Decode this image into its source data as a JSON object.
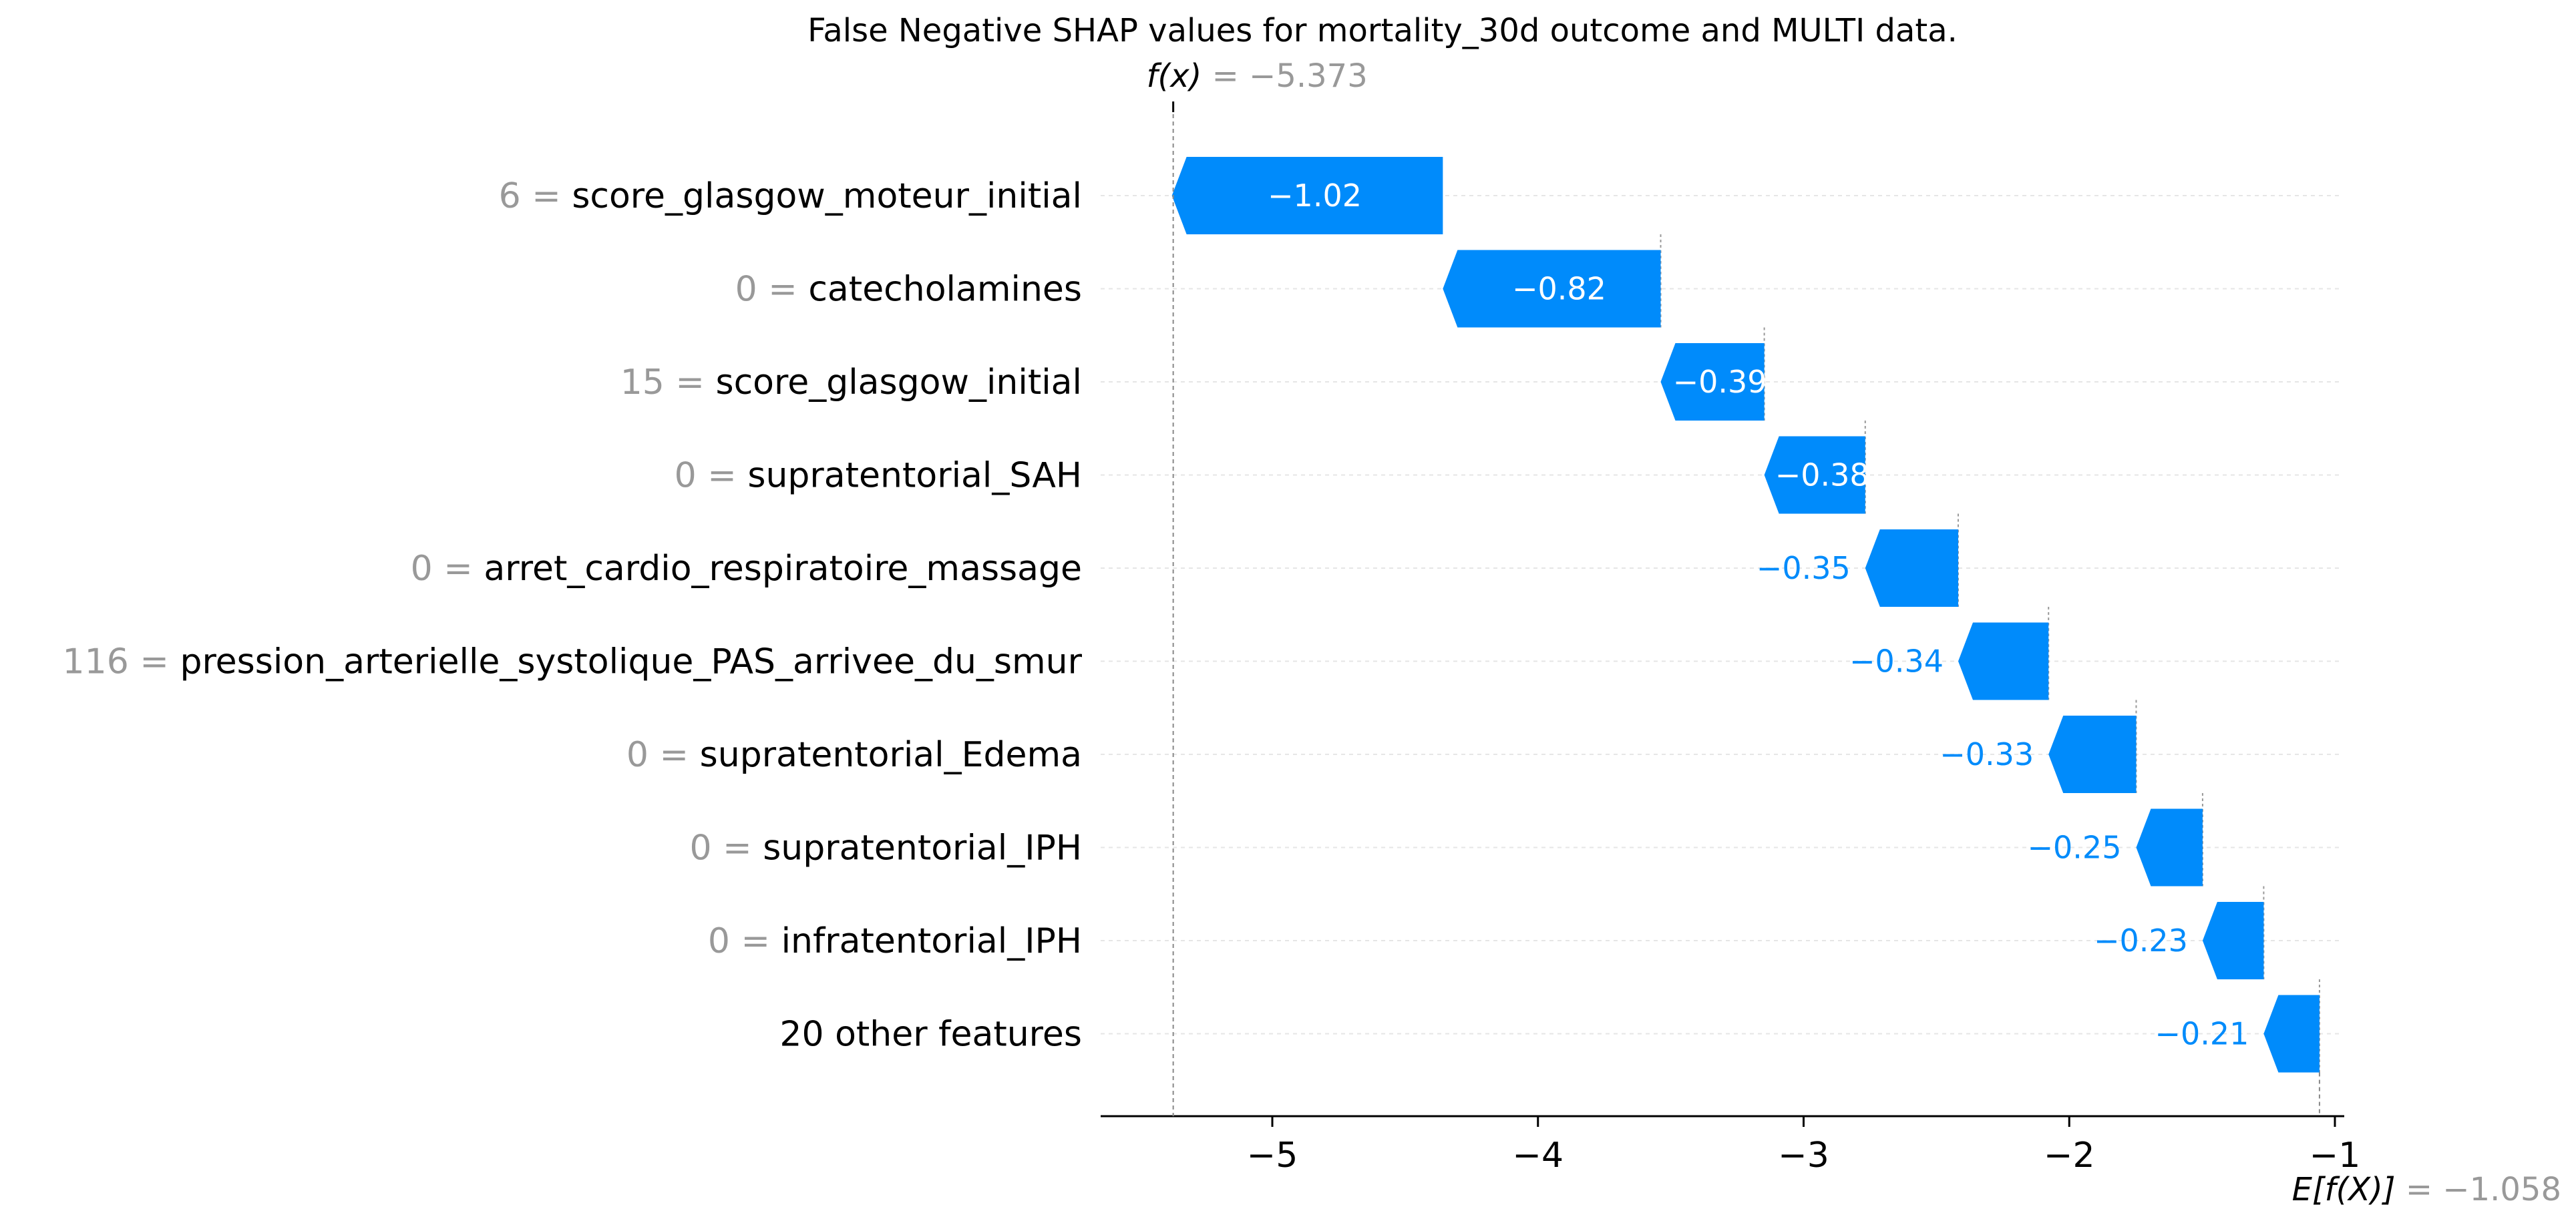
{
  "chart_data": {
    "type": "bar",
    "subtype": "waterfall",
    "title": "False Negative SHAP values for mortality_30d outcome and MULTI data.",
    "fx_label": "f(x)",
    "fx_value": -5.373,
    "fx_value_text": "−5.373",
    "efx_label": "E[f(X)]",
    "efx_value": -1.058,
    "efx_value_text": "−1.058",
    "xlabel": "",
    "ylabel": "",
    "xlim": [
      -5.6,
      -0.98
    ],
    "xticks": [
      -5,
      -4,
      -3,
      -2,
      -1
    ],
    "xtick_labels": [
      "−5",
      "−4",
      "−3",
      "−2",
      "−1"
    ],
    "grid": "horizontal dotted",
    "bar_color": "#008bfb",
    "label_inside_color": "#ffffff",
    "label_outside_color": "#008bfb",
    "feature_value_color": "#999999",
    "features": [
      {
        "value": "6",
        "name": "score_glasgow_moteur_initial",
        "shap": -1.02,
        "label": "−1.02",
        "label_inside": true
      },
      {
        "value": "0",
        "name": "catecholamines",
        "shap": -0.82,
        "label": "−0.82",
        "label_inside": true
      },
      {
        "value": "15",
        "name": "score_glasgow_initial",
        "shap": -0.39,
        "label": "−0.39",
        "label_inside": true
      },
      {
        "value": "0",
        "name": "supratentorial_SAH",
        "shap": -0.38,
        "label": "−0.38",
        "label_inside": true
      },
      {
        "value": "0",
        "name": "arret_cardio_respiratoire_massage",
        "shap": -0.35,
        "label": "−0.35",
        "label_inside": false
      },
      {
        "value": "116",
        "name": "pression_arterielle_systolique_PAS_arrivee_du_smur",
        "shap": -0.34,
        "label": "−0.34",
        "label_inside": false
      },
      {
        "value": "0",
        "name": "supratentorial_Edema",
        "shap": -0.33,
        "label": "−0.33",
        "label_inside": false
      },
      {
        "value": "0",
        "name": "supratentorial_IPH",
        "shap": -0.25,
        "label": "−0.25",
        "label_inside": false
      },
      {
        "value": "0",
        "name": "infratentorial_IPH",
        "shap": -0.23,
        "label": "−0.23",
        "label_inside": false
      },
      {
        "value": "",
        "name": "20 other features",
        "shap": -0.21,
        "label": "−0.21",
        "label_inside": false
      }
    ]
  }
}
